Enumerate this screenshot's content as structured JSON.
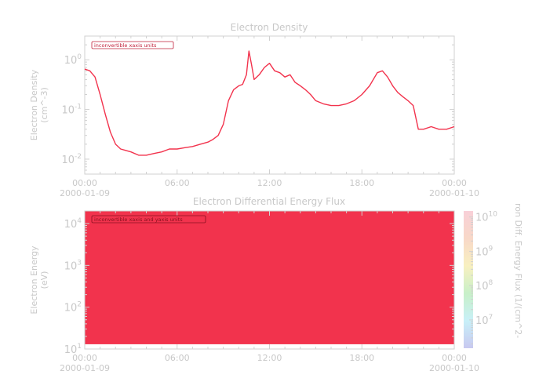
{
  "chart_data": [
    {
      "type": "line",
      "title": "Electron Density",
      "ylabel": "Electron Density",
      "yunit": "(cm^-3)",
      "yscale": "log",
      "ylim": [
        0.005,
        3
      ],
      "xlim": [
        "2000-01-09 00:00",
        "2000-01-10 00:00"
      ],
      "xticks": [
        {
          "time": "2000-01-09 00:00",
          "label": "00:00",
          "date": "2000-01-09"
        },
        {
          "time": "2000-01-09 06:00",
          "label": "06:00",
          "date": ""
        },
        {
          "time": "2000-01-09 12:00",
          "label": "12:00",
          "date": ""
        },
        {
          "time": "2000-01-09 18:00",
          "label": "18:00",
          "date": ""
        },
        {
          "time": "2000-01-10 00:00",
          "label": "00:00",
          "date": "2000-01-10"
        }
      ],
      "yticks": [
        {
          "value": 0.01,
          "base": "10",
          "exp": "-2"
        },
        {
          "value": 0.1,
          "base": "10",
          "exp": "-1"
        },
        {
          "value": 1,
          "base": "10",
          "exp": "0"
        }
      ],
      "annotation": "inconvertible xaxis units",
      "series_color": "#f2334d",
      "series": [
        {
          "x": [
            "2000-01-09 00:00",
            "2000-01-09 00:20",
            "2000-01-09 00:40",
            "2000-01-09 01:00",
            "2000-01-09 01:20",
            "2000-01-09 01:40",
            "2000-01-09 02:00",
            "2000-01-09 02:20",
            "2000-01-09 02:40",
            "2000-01-09 03:00",
            "2000-01-09 03:30",
            "2000-01-09 04:00",
            "2000-01-09 04:30",
            "2000-01-09 05:00",
            "2000-01-09 05:30",
            "2000-01-09 06:00",
            "2000-01-09 06:30",
            "2000-01-09 07:00",
            "2000-01-09 07:30",
            "2000-01-09 08:00",
            "2000-01-09 08:20",
            "2000-01-09 08:40",
            "2000-01-09 09:00",
            "2000-01-09 09:20",
            "2000-01-09 09:40",
            "2000-01-09 10:00",
            "2000-01-09 10:15",
            "2000-01-09 10:30",
            "2000-01-09 10:40",
            "2000-01-09 10:50",
            "2000-01-09 11:00",
            "2000-01-09 11:20",
            "2000-01-09 11:40",
            "2000-01-09 12:00",
            "2000-01-09 12:20",
            "2000-01-09 12:40",
            "2000-01-09 13:00",
            "2000-01-09 13:20",
            "2000-01-09 13:40",
            "2000-01-09 14:00",
            "2000-01-09 14:20",
            "2000-01-09 14:40",
            "2000-01-09 15:00",
            "2000-01-09 15:30",
            "2000-01-09 16:00",
            "2000-01-09 16:30",
            "2000-01-09 17:00",
            "2000-01-09 17:30",
            "2000-01-09 18:00",
            "2000-01-09 18:30",
            "2000-01-09 19:00",
            "2000-01-09 19:20",
            "2000-01-09 19:40",
            "2000-01-09 20:00",
            "2000-01-09 20:20",
            "2000-01-09 20:40",
            "2000-01-09 21:00",
            "2000-01-09 21:20",
            "2000-01-09 21:40",
            "2000-01-09 22:00",
            "2000-01-09 22:30",
            "2000-01-09 23:00",
            "2000-01-09 23:30",
            "2000-01-10 00:00"
          ],
          "y": [
            0.65,
            0.6,
            0.45,
            0.2,
            0.08,
            0.035,
            0.02,
            0.016,
            0.015,
            0.014,
            0.012,
            0.012,
            0.013,
            0.014,
            0.016,
            0.016,
            0.017,
            0.018,
            0.02,
            0.022,
            0.025,
            0.03,
            0.05,
            0.15,
            0.25,
            0.3,
            0.32,
            0.5,
            1.5,
            0.8,
            0.4,
            0.5,
            0.7,
            0.85,
            0.6,
            0.55,
            0.45,
            0.5,
            0.35,
            0.3,
            0.25,
            0.2,
            0.15,
            0.13,
            0.12,
            0.12,
            0.13,
            0.15,
            0.2,
            0.3,
            0.55,
            0.6,
            0.45,
            0.3,
            0.22,
            0.18,
            0.15,
            0.12,
            0.04,
            0.04,
            0.045,
            0.04,
            0.04,
            0.045
          ]
        }
      ]
    },
    {
      "type": "heatmap",
      "title": "Electron Differential Energy Flux",
      "ylabel": "Electron Energy",
      "yunit": "(eV)",
      "yscale": "log",
      "ylim": [
        10,
        20000
      ],
      "xlim": [
        "2000-01-09 00:00",
        "2000-01-10 00:00"
      ],
      "xticks": [
        {
          "time": "2000-01-09 00:00",
          "label": "00:00",
          "date": "2000-01-09"
        },
        {
          "time": "2000-01-09 06:00",
          "label": "06:00",
          "date": ""
        },
        {
          "time": "2000-01-09 12:00",
          "label": "12:00",
          "date": ""
        },
        {
          "time": "2000-01-09 18:00",
          "label": "18:00",
          "date": ""
        },
        {
          "time": "2000-01-10 00:00",
          "label": "00:00",
          "date": "2000-01-10"
        }
      ],
      "yticks": [
        {
          "value": 10,
          "base": "10",
          "exp": "1"
        },
        {
          "value": 100,
          "base": "10",
          "exp": "2"
        },
        {
          "value": 1000,
          "base": "10",
          "exp": "3"
        },
        {
          "value": 10000,
          "base": "10",
          "exp": "4"
        }
      ],
      "annotation": "inconvertible xaxis and yaxis units",
      "fill_color": "#f2334d",
      "filled_energy_range": [
        13,
        20000
      ],
      "colorbar": {
        "label": "ron Diff. Energy Flux (1/(cm^2-",
        "scale": "log",
        "range": [
          1500000,
          15000000000
        ],
        "ticks": [
          {
            "value": 10000000,
            "base": "10",
            "exp": "7"
          },
          {
            "value": 100000000,
            "base": "10",
            "exp": "8"
          },
          {
            "value": 1000000000,
            "base": "10",
            "exp": "9"
          },
          {
            "value": 10000000000,
            "base": "10",
            "exp": "10"
          }
        ],
        "gradient": [
          "#c8c8f0",
          "#c8f0f8",
          "#c8f0c8",
          "#f8f0c0",
          "#f8d8c8",
          "#f8d0d8"
        ]
      }
    }
  ]
}
